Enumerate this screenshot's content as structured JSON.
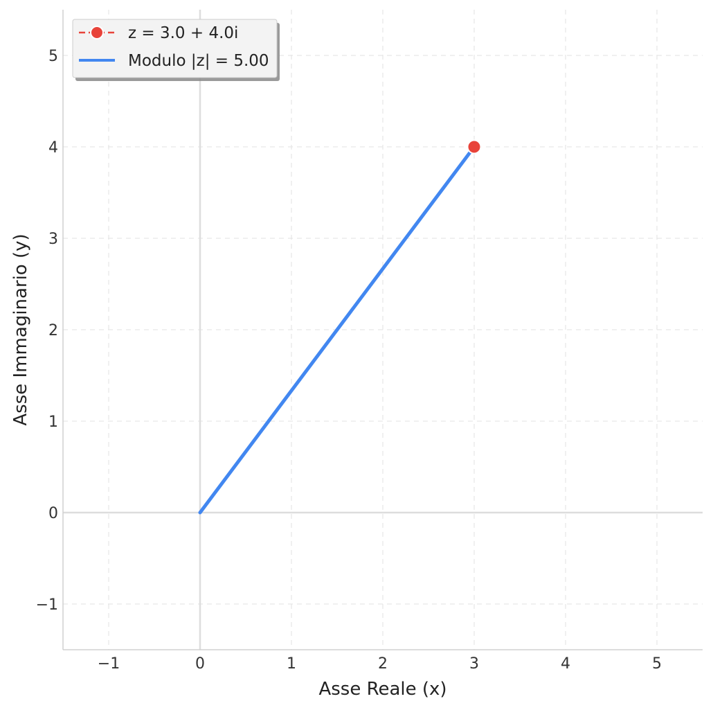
{
  "chart_data": {
    "type": "line",
    "xlabel": "Asse Reale (x)",
    "ylabel": "Asse Immaginario (y)",
    "xlim": [
      -1.5,
      5.5
    ],
    "ylim": [
      -1.5,
      5.5
    ],
    "x_ticks": [
      -1,
      0,
      1,
      2,
      3,
      4,
      5
    ],
    "y_ticks": [
      -1,
      0,
      1,
      2,
      3,
      4,
      5
    ],
    "x_tick_labels": [
      "−1",
      "0",
      "1",
      "2",
      "3",
      "4",
      "5"
    ],
    "y_tick_labels": [
      "−1",
      "0",
      "1",
      "2",
      "3",
      "4",
      "5"
    ],
    "grid": true,
    "grid_style": "dashed",
    "legend_position": "top-left",
    "series": [
      {
        "name": "z = 3.0 + 4.0i",
        "kind": "point",
        "color": "#e8433a",
        "x": [
          3.0
        ],
        "y": [
          4.0
        ]
      },
      {
        "name": "Modulo |z| = 5.00",
        "kind": "line",
        "color": "#4287f0",
        "x": [
          0,
          3.0
        ],
        "y": [
          0,
          4.0
        ]
      }
    ],
    "reference_lines": {
      "x": 0,
      "y": 0,
      "color": "#dddddd"
    }
  }
}
